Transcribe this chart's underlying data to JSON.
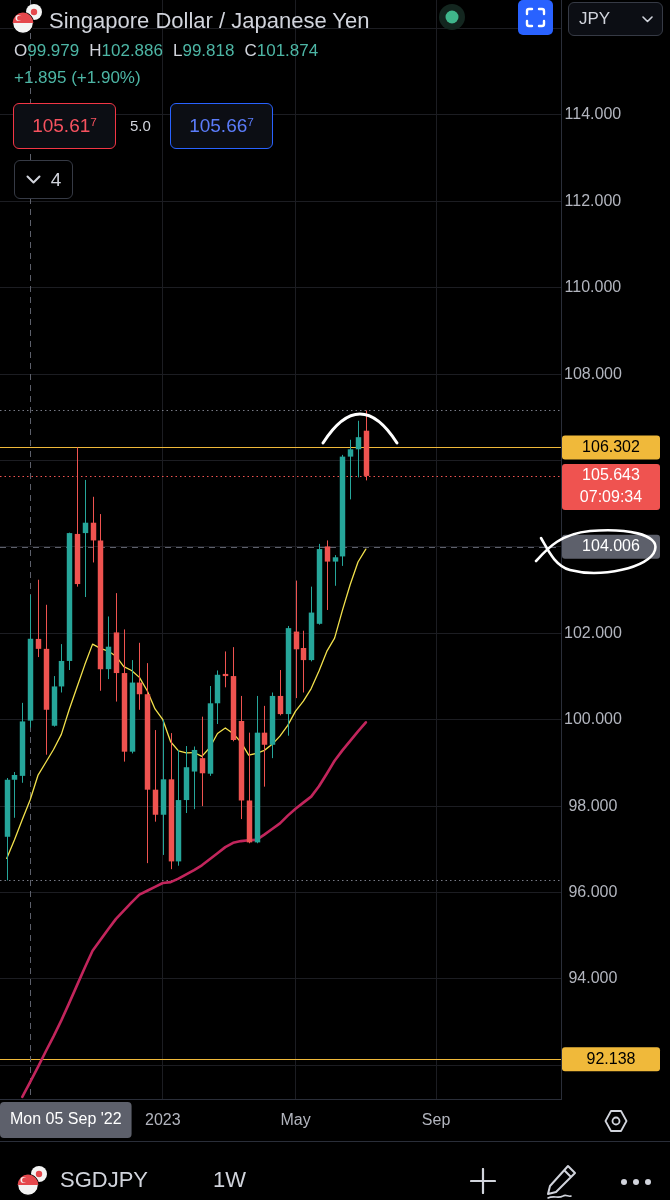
{
  "chart_data": {
    "type": "candlestick",
    "title": "Singapore Dollar / Japanese Yen",
    "x": [
      "2022-08-15",
      "2022-08-22",
      "2022-08-29",
      "2022-09-05",
      "2022-09-12",
      "2022-09-19",
      "2022-09-26",
      "2022-10-03",
      "2022-10-10",
      "2022-10-17",
      "2022-10-24",
      "2022-10-31",
      "2022-11-07",
      "2022-11-14",
      "2022-11-21",
      "2022-11-28",
      "2022-12-05",
      "2022-12-12",
      "2022-12-19",
      "2022-12-26",
      "2023-01-02",
      "2023-01-09",
      "2023-01-16",
      "2023-01-23",
      "2023-01-30",
      "2023-02-06",
      "2023-02-13",
      "2023-02-20",
      "2023-02-27",
      "2023-03-06",
      "2023-03-13",
      "2023-03-20",
      "2023-03-27",
      "2023-04-03",
      "2023-04-10",
      "2023-04-17",
      "2023-04-24",
      "2023-05-01",
      "2023-05-08",
      "2023-05-15",
      "2023-05-22",
      "2023-05-29",
      "2023-06-05",
      "2023-06-12",
      "2023-06-19",
      "2023-06-26",
      "2023-07-03"
    ],
    "ohlc": [
      [
        97.29,
        98.65,
        96.28,
        98.61
      ],
      [
        98.61,
        98.79,
        97.73,
        98.72
      ],
      [
        98.7,
        100.39,
        98.54,
        99.96
      ],
      [
        99.979,
        102.886,
        99.818,
        101.874
      ],
      [
        101.87,
        103.24,
        101.45,
        101.64
      ],
      [
        101.64,
        102.66,
        99.19,
        100.23
      ],
      [
        99.86,
        101.01,
        99.84,
        100.77
      ],
      [
        100.77,
        101.75,
        100.63,
        101.36
      ],
      [
        101.36,
        104.33,
        101.15,
        104.32
      ],
      [
        104.3,
        106.302,
        103.08,
        103.14
      ],
      [
        104.32,
        105.55,
        102.84,
        104.56
      ],
      [
        104.56,
        105.16,
        103.64,
        104.15
      ],
      [
        104.15,
        104.76,
        100.67,
        101.17
      ],
      [
        101.17,
        102.39,
        100.94,
        101.69
      ],
      [
        102.02,
        102.93,
        100.42,
        101.08
      ],
      [
        101.08,
        102.09,
        99.03,
        99.26
      ],
      [
        99.26,
        101.38,
        99.22,
        100.86
      ],
      [
        100.86,
        101.78,
        100.23,
        100.59
      ],
      [
        100.59,
        101.31,
        96.68,
        98.38
      ],
      [
        98.38,
        99.76,
        97.64,
        97.8
      ],
      [
        97.8,
        100.0,
        96.87,
        98.62
      ],
      [
        98.62,
        99.69,
        96.54,
        96.72
      ],
      [
        96.72,
        99.3,
        96.62,
        98.14
      ],
      [
        98.14,
        99.39,
        97.84,
        98.9
      ],
      [
        98.8,
        99.38,
        97.93,
        99.3
      ],
      [
        99.11,
        100.07,
        98.0,
        98.76
      ],
      [
        98.75,
        100.78,
        98.7,
        100.38
      ],
      [
        100.38,
        101.14,
        99.9,
        101.04
      ],
      [
        101.06,
        101.58,
        100.75,
        101.01
      ],
      [
        101.01,
        101.68,
        99.5,
        99.53
      ],
      [
        99.97,
        100.55,
        97.7,
        98.13
      ],
      [
        98.13,
        99.7,
        97.14,
        97.16
      ],
      [
        97.16,
        100.55,
        97.14,
        99.7
      ],
      [
        99.7,
        100.32,
        98.45,
        99.42
      ],
      [
        99.42,
        100.63,
        99.11,
        100.55
      ],
      [
        100.55,
        101.15,
        100.1,
        100.13
      ],
      [
        100.13,
        102.17,
        99.63,
        102.12
      ],
      [
        102.04,
        103.22,
        100.5,
        101.63
      ],
      [
        101.66,
        102.06,
        100.63,
        101.38
      ],
      [
        101.38,
        103.08,
        101.35,
        102.48
      ],
      [
        102.22,
        104.07,
        102.2,
        103.95
      ],
      [
        104.01,
        104.15,
        102.54,
        103.66
      ],
      [
        103.66,
        103.81,
        103.1,
        103.76
      ],
      [
        103.78,
        106.13,
        103.56,
        106.09
      ],
      [
        106.09,
        106.48,
        105.1,
        106.26
      ],
      [
        106.26,
        106.92,
        105.61,
        106.54
      ],
      [
        106.69,
        107.16,
        105.54,
        105.643
      ]
    ],
    "colors": [
      "#26a69a",
      "#26a69a",
      "#26a69a",
      "#26a69a",
      "#ef5350",
      "#ef5350",
      "#26a69a",
      "#26a69a",
      "#26a69a",
      "#ef5350",
      "#26a69a",
      "#ef5350",
      "#ef5350",
      "#26a69a",
      "#ef5350",
      "#ef5350",
      "#26a69a",
      "#ef5350",
      "#ef5350",
      "#ef5350",
      "#26a69a",
      "#ef5350",
      "#26a69a",
      "#26a69a",
      "#26a69a",
      "#ef5350",
      "#26a69a",
      "#26a69a",
      "#ef5350",
      "#ef5350",
      "#ef5350",
      "#ef5350",
      "#26a69a",
      "#ef5350",
      "#26a69a",
      "#ef5350",
      "#26a69a",
      "#ef5350",
      "#ef5350",
      "#26a69a",
      "#26a69a",
      "#ef5350",
      "#26a69a",
      "#26a69a",
      "#26a69a",
      "#26a69a",
      "#ef5350"
    ],
    "series": [
      {
        "type": "line",
        "color": "#f2e14c",
        "values": [
          96.79,
          97.22,
          97.69,
          98.14,
          98.71,
          99.01,
          99.31,
          99.66,
          100.23,
          100.75,
          101.27,
          101.75,
          101.65,
          101.59,
          101.47,
          101.23,
          101.14,
          100.98,
          100.67,
          100.25,
          100.0,
          99.49,
          99.28,
          99.23,
          99.24,
          99.15,
          99.35,
          99.68,
          99.81,
          99.68,
          99.48,
          99.18,
          99.22,
          99.29,
          99.43,
          99.62,
          99.87,
          100.2,
          100.43,
          100.72,
          101.13,
          101.58,
          101.89,
          102.53,
          103.13,
          103.65,
          103.95
        ]
      },
      {
        "type": "line",
        "color": "#c2255c",
        "values": [
          null,
          null,
          91.27,
          91.61,
          91.96,
          92.32,
          92.67,
          93.04,
          93.44,
          93.85,
          94.26,
          94.65,
          94.9,
          95.15,
          95.39,
          95.58,
          95.77,
          95.95,
          96.04,
          96.13,
          96.22,
          96.24,
          96.32,
          96.42,
          96.52,
          96.63,
          96.77,
          96.91,
          97.05,
          97.15,
          97.19,
          97.21,
          97.22,
          97.34,
          97.47,
          97.6,
          97.78,
          97.94,
          98.08,
          98.22,
          98.46,
          98.75,
          99.05,
          99.29,
          99.51,
          99.73,
          99.94
        ]
      }
    ],
    "xlim": [
      "2022-08-09",
      "2023-12-25"
    ],
    "xticks": [
      {
        "value": "2023-01-02",
        "label": "2023"
      },
      {
        "value": "2023-05-01",
        "label": "May"
      },
      {
        "value": "2023-09-04",
        "label": "Sep"
      }
    ],
    "ylim": [
      91.22,
      116.66
    ],
    "yticks": [
      {
        "value": 92,
        "label": null
      },
      {
        "value": 94,
        "label": "94.000"
      },
      {
        "value": 96,
        "label": "96.000"
      },
      {
        "value": 98,
        "label": "98.000"
      },
      {
        "value": 100,
        "label": "100.000"
      },
      {
        "value": 102,
        "label": "102.000"
      },
      {
        "value": 104,
        "label": null
      },
      {
        "value": 106,
        "label": null
      },
      {
        "value": 108,
        "label": "108.000"
      },
      {
        "value": 110,
        "label": "110.000"
      },
      {
        "value": 112,
        "label": "112.000"
      },
      {
        "value": 114,
        "label": "114.000"
      },
      {
        "value": 116,
        "label": null
      }
    ],
    "grid": true,
    "ref_lines": [
      {
        "axis": "y",
        "value": 106.302,
        "label": "106.302",
        "color": "#f0b93a"
      },
      {
        "axis": "y",
        "value": 105.643,
        "label": "105.643\n07:09:34",
        "color": "#ef5350",
        "line_style": "dotted"
      },
      {
        "axis": "y",
        "value": 104.006,
        "label": "104.006",
        "color": "#5d606b",
        "line_style": "dashed"
      },
      {
        "axis": "y",
        "value": 92.138,
        "label": "92.138",
        "color": "#f0b93a"
      },
      {
        "axis": "y",
        "value": 107.16,
        "color": "#787b86",
        "line_style": "dotted"
      },
      {
        "axis": "y",
        "value": 96.28,
        "color": "#787b86",
        "line_style": "dotted"
      },
      {
        "axis": "x",
        "value": "2022-09-05",
        "label": "Mon 05 Sep '22",
        "color": "#5d606b",
        "line_style": "dashed"
      }
    ],
    "annotations": [
      "O99.979",
      "H102.886",
      "L99.818",
      "C101.874",
      "+1.895 (+1.90%)",
      "105.61$^{7}$",
      "5.0",
      "105.66$^{7}$",
      "4",
      "JPY",
      "SGDJPY",
      "1W"
    ]
  }
}
